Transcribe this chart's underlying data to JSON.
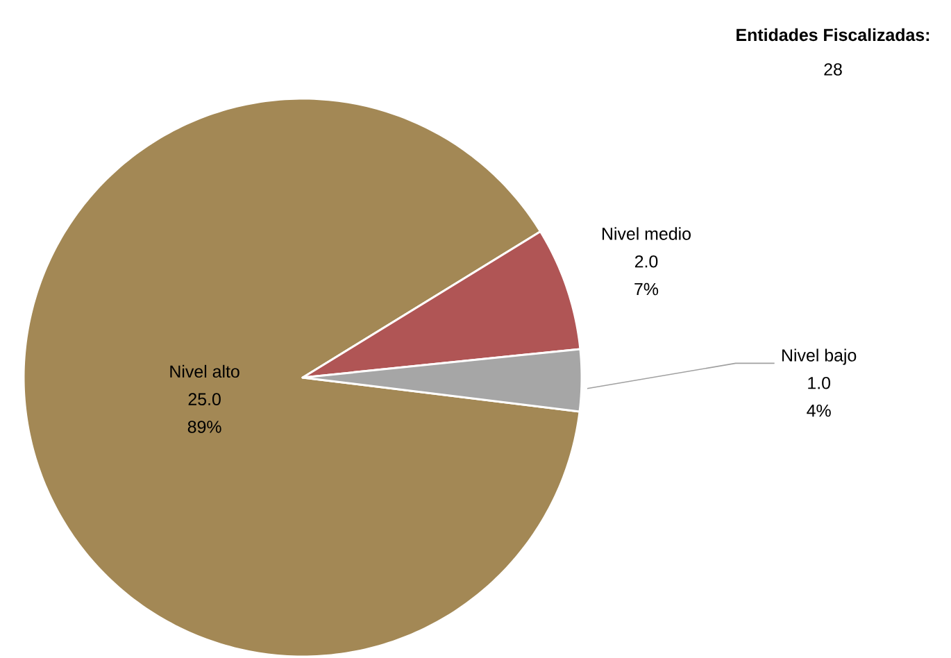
{
  "chart_data": {
    "type": "pie",
    "categories": [
      "Nivel alto",
      "Nivel medio",
      "Nivel bajo"
    ],
    "values": [
      25,
      2,
      1
    ],
    "value_labels": [
      "25.0",
      "2.0",
      "1.0"
    ],
    "colors": [
      "#a38855",
      "#b05555",
      "#a6a6a6"
    ],
    "annotations": [
      "**Entidades Fiscalizadas:**",
      "28",
      "89%",
      "7%",
      "4%"
    ]
  }
}
